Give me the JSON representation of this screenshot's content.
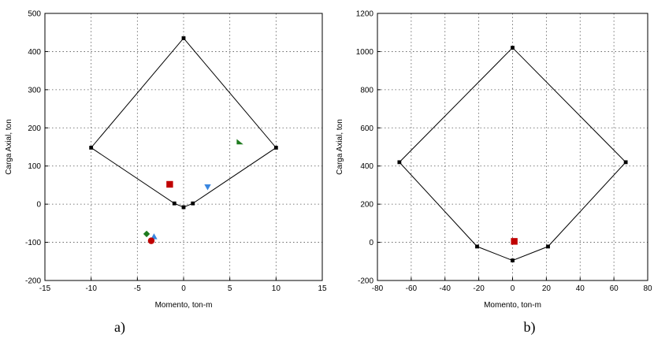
{
  "chart_data": [
    {
      "type": "scatter",
      "panel_label": "a)",
      "xlabel": "Momento, ton-m",
      "ylabel": "Carga Axial, ton",
      "xlim": [
        -15,
        15
      ],
      "ylim": [
        -200,
        500
      ],
      "xticks": [
        -15,
        -10,
        -5,
        0,
        5,
        10,
        15
      ],
      "yticks": [
        -200,
        -100,
        0,
        100,
        200,
        300,
        400,
        500
      ],
      "grid": true,
      "envelope": {
        "x": [
          0,
          10,
          1,
          0,
          -1,
          -10,
          0
        ],
        "y": [
          435,
          148,
          2,
          -8,
          2,
          148,
          435
        ]
      },
      "series": [
        {
          "marker": "square",
          "color": "#c00000",
          "points": [
            {
              "x": -1.5,
              "y": 52
            }
          ]
        },
        {
          "marker": "triangle-down",
          "color": "#3a87e0",
          "points": [
            {
              "x": 2.6,
              "y": 45
            }
          ]
        },
        {
          "marker": "triangle-right",
          "color": "#1e7a1e",
          "points": [
            {
              "x": 6.1,
              "y": 162
            }
          ]
        },
        {
          "marker": "diamond",
          "color": "#1e7a1e",
          "points": [
            {
              "x": -4.0,
              "y": -78
            }
          ]
        },
        {
          "marker": "triangle-up",
          "color": "#3a87e0",
          "points": [
            {
              "x": -3.2,
              "y": -85
            }
          ]
        },
        {
          "marker": "circle",
          "color": "#c00000",
          "points": [
            {
              "x": -3.5,
              "y": -96
            }
          ]
        }
      ]
    },
    {
      "type": "scatter",
      "panel_label": "b)",
      "xlabel": "Momento, ton-m",
      "ylabel": "Carga Axial, ton",
      "xlim": [
        -80,
        80
      ],
      "ylim": [
        -200,
        1200
      ],
      "xticks": [
        -80,
        -60,
        -40,
        -20,
        0,
        20,
        40,
        60,
        80
      ],
      "yticks": [
        -200,
        0,
        200,
        400,
        600,
        800,
        1000,
        1200
      ],
      "grid": true,
      "envelope": {
        "x": [
          0,
          67,
          21,
          0,
          -21,
          -67,
          0
        ],
        "y": [
          1020,
          420,
          -22,
          -95,
          -22,
          420,
          1020
        ]
      },
      "series": [
        {
          "marker": "square",
          "color": "#c00000",
          "points": [
            {
              "x": 1,
              "y": 5
            }
          ]
        }
      ]
    }
  ]
}
